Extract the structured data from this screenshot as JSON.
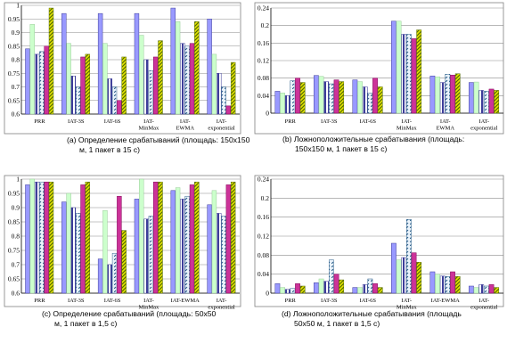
{
  "figure": {
    "series_styles": [
      {
        "fill": "#9999ff",
        "stroke": "#3d3d99",
        "pattern": "solid"
      },
      {
        "fill": "#ccffcc",
        "stroke": "#99cc99",
        "pattern": "solid"
      },
      {
        "fill": "#3d3d99",
        "stroke": "#3d3d99",
        "pattern": "vertical-stripes"
      },
      {
        "fill": "#7fb3e0",
        "stroke": "#2c5f8a",
        "pattern": "diagonal-dashes"
      },
      {
        "fill": "#cc3399",
        "stroke": "#800055",
        "pattern": "solid"
      },
      {
        "fill": "#7fc241",
        "stroke": "#556b00",
        "pattern": "diagonal-stripes"
      }
    ]
  },
  "chart_data": [
    {
      "type": "bar",
      "caption": "(a) Определение срабатываний (площадь: 150x150 м, 1 пакет в 15 с)",
      "caption_lines": [
        "(a)  Определение срабатываний (площадь: 150х150",
        "м, 1 пакет в 15 с)"
      ],
      "categories": [
        "PRR",
        "IAT-3S",
        "IAT-6S",
        "IAT-MinMax",
        "IAT-EWMA",
        "IAT-exponential"
      ],
      "category_lines": [
        [
          "PRR"
        ],
        [
          "IAT-3S"
        ],
        [
          "IAT-6S"
        ],
        [
          "IAT-",
          "MinMax"
        ],
        [
          "IAT-",
          "EWMA"
        ],
        [
          "IAT-",
          "exponential"
        ]
      ],
      "ylim": [
        0.6,
        1.0
      ],
      "yticks": [
        0.6,
        0.65,
        0.7,
        0.75,
        0.8,
        0.85,
        0.9,
        0.95,
        1
      ],
      "ytick_labels": [
        "0.6",
        "0.65",
        "0.7",
        "0.75",
        "0.8",
        "0.85",
        "0.9",
        "0.95",
        "1"
      ],
      "grid": true,
      "series": [
        {
          "values": [
            0.84,
            0.97,
            0.97,
            0.97,
            0.99,
            0.95
          ]
        },
        {
          "values": [
            0.93,
            0.86,
            0.86,
            0.89,
            0.94,
            0.82
          ]
        },
        {
          "values": [
            0.82,
            0.74,
            0.73,
            0.8,
            0.86,
            0.75
          ]
        },
        {
          "values": [
            0.83,
            0.7,
            0.7,
            0.76,
            0.85,
            0.7
          ]
        },
        {
          "values": [
            0.85,
            0.81,
            0.65,
            0.81,
            0.86,
            0.63
          ]
        },
        {
          "values": [
            0.99,
            0.82,
            0.81,
            0.87,
            0.94,
            0.79
          ]
        }
      ]
    },
    {
      "type": "bar",
      "caption": "(b) Ложноположительные срабатывания (площадь: 150x150 м, 1 пакет в 15 с)",
      "caption_lines": [
        "(b)  Ложноположительные срабатывания (площадь:",
        "150х150 м, 1 пакет в 15 с)"
      ],
      "categories": [
        "PRR",
        "IAT-3S",
        "IAT-6S",
        "IAT-MinMax",
        "IAT-EWMA",
        "IAT-exponential"
      ],
      "category_lines": [
        [
          "PRR"
        ],
        [
          "IAT-3S"
        ],
        [
          "IAT-6S"
        ],
        [
          "IAT-",
          "MinMax"
        ],
        [
          "IAT-",
          "EWMA"
        ],
        [
          "IAT-",
          "exponential"
        ]
      ],
      "ylim": [
        0,
        0.24
      ],
      "yticks": [
        0,
        0.04,
        0.08,
        0.12,
        0.16,
        0.2,
        0.24
      ],
      "ytick_labels": [
        "0",
        "0.04",
        "0.08",
        "0.12",
        "0.16",
        "0.2",
        "0.24"
      ],
      "grid": true,
      "series": [
        {
          "values": [
            0.05,
            0.086,
            0.076,
            0.21,
            0.085,
            0.07
          ]
        },
        {
          "values": [
            0.046,
            0.084,
            0.072,
            0.21,
            0.083,
            0.071
          ]
        },
        {
          "values": [
            0.04,
            0.072,
            0.06,
            0.18,
            0.07,
            0.052
          ]
        },
        {
          "values": [
            0.074,
            0.067,
            0.046,
            0.18,
            0.089,
            0.05
          ]
        },
        {
          "values": [
            0.08,
            0.076,
            0.08,
            0.17,
            0.087,
            0.055
          ]
        },
        {
          "values": [
            0.07,
            0.072,
            0.06,
            0.19,
            0.09,
            0.052
          ]
        }
      ]
    },
    {
      "type": "bar",
      "caption": "(c) Определение срабатываний (площадь: 50x50 м, 1 пакет в 1,5 с)",
      "caption_lines": [
        "(c)  Определение срабатываний (площадь: 50х50",
        "м, 1 пакет в 1,5 с)"
      ],
      "categories": [
        "PRR",
        "IAT-3S",
        "IAT-6S",
        "IAT-MinMax",
        "IAT-EWMA",
        "IAT-exponential"
      ],
      "category_lines": [
        [
          "PRR"
        ],
        [
          "IAT-3S"
        ],
        [
          "IAT-6S"
        ],
        [
          "IAT-",
          "MinMax"
        ],
        [
          "IAT-EWMA"
        ],
        [
          "IAT-",
          "exponential"
        ]
      ],
      "ylim": [
        0.6,
        1.0
      ],
      "yticks": [
        0.6,
        0.65,
        0.7,
        0.75,
        0.8,
        0.85,
        0.9,
        0.95,
        1
      ],
      "ytick_labels": [
        "0.6",
        "0.65",
        "0.7",
        "0.75",
        "0.8",
        "0.85",
        "0.9",
        "0.95",
        "1"
      ],
      "grid": true,
      "series": [
        {
          "values": [
            0.98,
            0.92,
            0.72,
            0.93,
            0.96,
            0.91
          ]
        },
        {
          "values": [
            1.0,
            0.95,
            0.89,
            1.0,
            0.97,
            0.96
          ]
        },
        {
          "values": [
            0.99,
            0.9,
            0.7,
            0.86,
            0.93,
            0.88
          ]
        },
        {
          "values": [
            0.99,
            0.88,
            0.74,
            0.87,
            0.94,
            0.87
          ]
        },
        {
          "values": [
            0.99,
            0.98,
            0.94,
            0.99,
            0.98,
            0.98
          ]
        },
        {
          "values": [
            0.99,
            0.99,
            0.82,
            0.99,
            0.99,
            0.99
          ]
        }
      ]
    },
    {
      "type": "bar",
      "caption": "(d) Ложноположительные срабатывания (площадь 50x50 м, 1 пакет в 1,5 с)",
      "caption_lines": [
        "(d)  Ложноположительные срабатывания (площадь",
        "50х50 м, 1 пакет в 1,5 с)"
      ],
      "categories": [
        "PRR",
        "IAT-3S",
        "IAT-6S",
        "IAT-MinMax",
        "IAT-EWMA",
        "IAT-exponential"
      ],
      "category_lines": [
        [
          "PRR"
        ],
        [
          "IAT-3S"
        ],
        [
          "IAT-6S"
        ],
        [
          "IAT-",
          "MinMax"
        ],
        [
          "IAT-EWMA"
        ],
        [
          "IAT-",
          "exponential"
        ]
      ],
      "ylim": [
        0,
        0.24
      ],
      "yticks": [
        0,
        0.04,
        0.08,
        0.12,
        0.16,
        0.2,
        0.24
      ],
      "ytick_labels": [
        "0",
        "0.04",
        "0.08",
        "0.12",
        "0.16",
        "0.2",
        "0.24"
      ],
      "grid": true,
      "series": [
        {
          "values": [
            0.02,
            0.022,
            0.012,
            0.105,
            0.045,
            0.015
          ]
        },
        {
          "values": [
            0.012,
            0.03,
            0.012,
            0.07,
            0.04,
            0.012
          ]
        },
        {
          "values": [
            0.008,
            0.025,
            0.018,
            0.075,
            0.036,
            0.018
          ]
        },
        {
          "values": [
            0.01,
            0.07,
            0.03,
            0.155,
            0.035,
            0.015
          ]
        },
        {
          "values": [
            0.02,
            0.04,
            0.02,
            0.085,
            0.045,
            0.018
          ]
        },
        {
          "values": [
            0.015,
            0.028,
            0.012,
            0.065,
            0.035,
            0.012
          ]
        }
      ]
    }
  ]
}
